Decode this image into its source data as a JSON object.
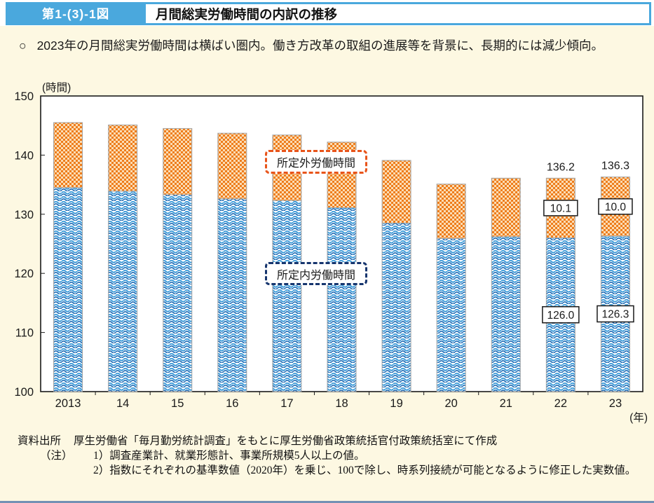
{
  "figure": {
    "badge": "第1-(3)-1図",
    "title": "月間総実労働時間の内訳の推移"
  },
  "bullet_marker": "○",
  "summary_bullet": "2023年の月間総実労働時間は横ばい圏内。働き方改革の取組の進展等を背景に、長期的には減少傾向。",
  "chart_data": {
    "type": "bar",
    "subtype": "stacked",
    "unit_label": "(時間)",
    "x_unit_label": "(年)",
    "categories": [
      "2013",
      "14",
      "15",
      "16",
      "17",
      "18",
      "19",
      "20",
      "21",
      "22",
      "23"
    ],
    "series": [
      {
        "name": "所定内労働時間",
        "pattern": "blue-wave",
        "values": [
          134.5,
          133.9,
          133.3,
          132.6,
          132.3,
          131.1,
          128.5,
          125.9,
          126.2,
          126.0,
          126.3
        ]
      },
      {
        "name": "所定外労働時間",
        "pattern": "orange-check",
        "values": [
          11.0,
          11.2,
          11.2,
          11.1,
          11.1,
          11.1,
          10.6,
          9.2,
          9.9,
          10.1,
          10.0
        ]
      }
    ],
    "totals": [
      145.5,
      145.1,
      144.5,
      143.7,
      143.4,
      142.2,
      139.1,
      135.1,
      136.1,
      136.2,
      136.3
    ],
    "ylim": [
      100,
      150
    ],
    "yticks": [
      100,
      110,
      120,
      130,
      140,
      150
    ],
    "grid": false,
    "point_labels": [
      {
        "category": "22",
        "total": "136.2",
        "overtime": "10.1",
        "scheduled": "126.0"
      },
      {
        "category": "23",
        "total": "136.3",
        "overtime": "10.0",
        "scheduled": "126.3"
      }
    ]
  },
  "footer": {
    "source_label": "資料出所",
    "source_text": "厚生労働省「毎月勤労統計調査」をもとに厚生労働省政策統括官付政策統括室にて作成",
    "note_label": "（注）",
    "notes": [
      "1）調査産業計、就業形態計、事業所規模5人以上の値。",
      "2）指数にそれぞれの基準数値（2020年）を乗じ、100で除し、時系列接続が可能となるように修正した実数値。"
    ]
  },
  "colors": {
    "header_blue": "#4aa8dd",
    "page_cream": "#fdf8e2",
    "bar_orange": "#ee7d1c",
    "bar_orange_light": "#fbdcb4",
    "bar_blue_dark": "#1463b0",
    "bar_blue_light": "#49a2dc",
    "bar_border_gray": "#a3a3a3",
    "legend_overtime_border": "#e8541a",
    "legend_scheduled_border": "#16356e",
    "bottom_rule": "#7391b4"
  }
}
